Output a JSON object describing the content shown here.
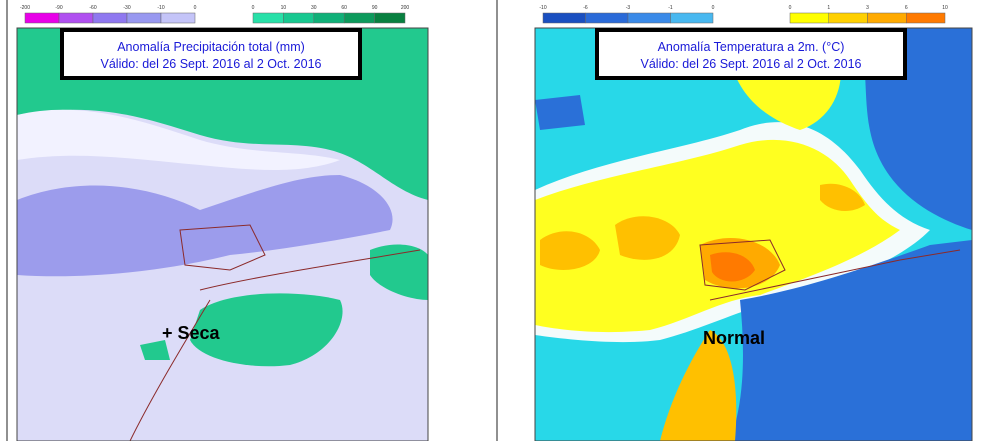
{
  "panels": [
    {
      "title": [
        "Anomalía Precipitación total (mm)",
        "Válido: del 26 Sept. 2016 al 2 Oct. 2016"
      ],
      "legend_negative": [
        "-200",
        "-90",
        "-60",
        "-30",
        "-10",
        "0"
      ],
      "legend_positive": [
        "0",
        "10",
        "30",
        "60",
        "90",
        "200"
      ],
      "annotation": "+ Seca"
    },
    {
      "title": [
        "Anomalía Temperatura a 2m. (°C)",
        "Válido: del 26 Sept. 2016 al 2 Oct. 2016"
      ],
      "legend_negative": [
        "-10",
        "-6",
        "-3",
        "-1",
        "0"
      ],
      "legend_positive": [
        "0",
        "1",
        "3",
        "6",
        "10"
      ],
      "annotation": "Normal"
    }
  ]
}
